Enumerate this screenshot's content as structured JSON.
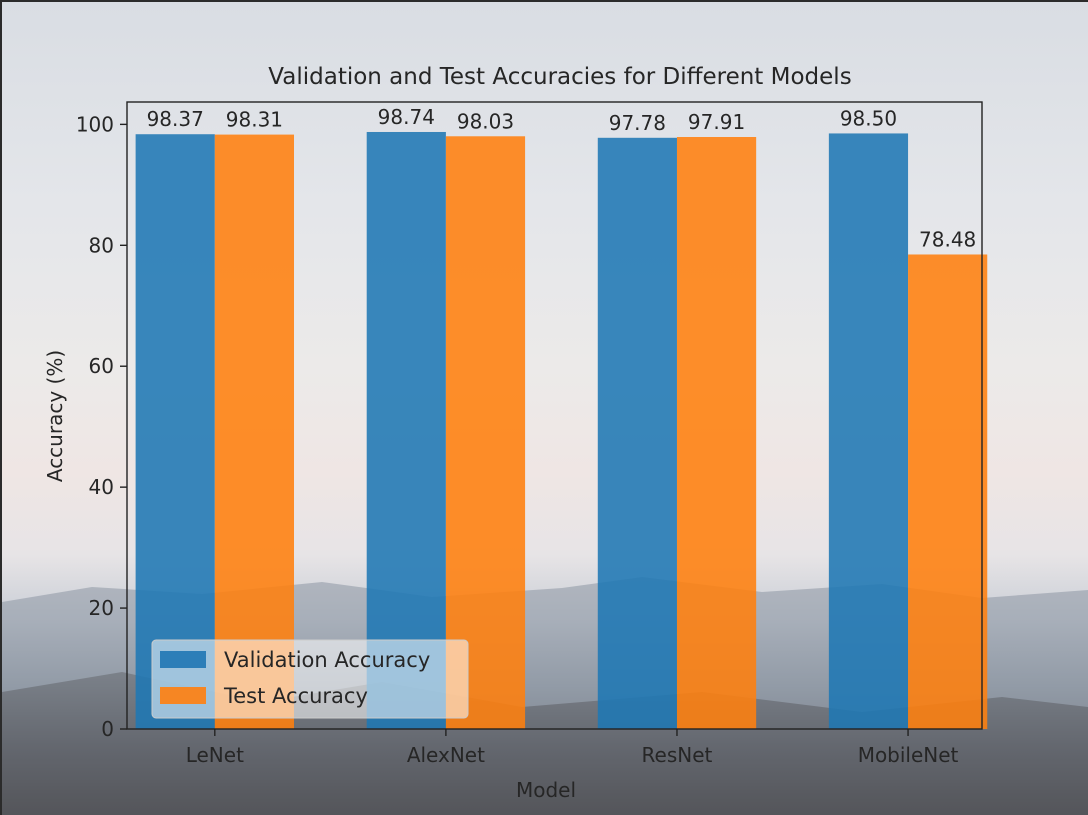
{
  "chart_data": {
    "type": "bar",
    "title": "Validation and Test Accuracies for Different Models",
    "xlabel": "Model",
    "ylabel": "Accuracy (%)",
    "categories": [
      "LeNet",
      "AlexNet",
      "ResNet",
      "MobileNet"
    ],
    "series": [
      {
        "name": "Validation Accuracy",
        "values": [
          98.37,
          98.74,
          97.78,
          98.5
        ],
        "color": "#1f77b4"
      },
      {
        "name": "Test Accuracy",
        "values": [
          98.31,
          98.03,
          97.91,
          78.48
        ],
        "color": "#ff7f0e"
      }
    ],
    "data_labels": [
      [
        "98.37",
        "98.74",
        "97.78",
        "98.50"
      ],
      [
        "98.31",
        "98.03",
        "97.91",
        "78.48"
      ]
    ],
    "ylim": [
      0,
      103.7
    ],
    "yticks": [
      0,
      20,
      40,
      60,
      80,
      100
    ],
    "grid": false,
    "legend_position": "lower-left"
  }
}
